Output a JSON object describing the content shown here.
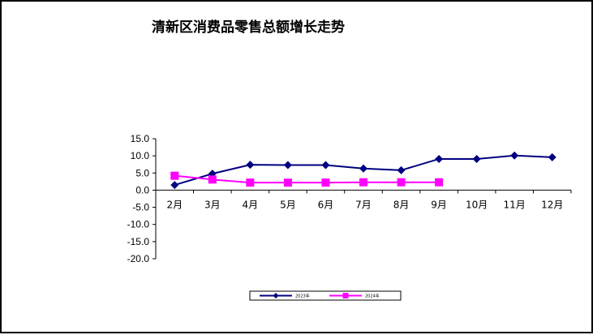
{
  "chart_data": {
    "type": "line",
    "title": "清新区消费品零售总额增长走势",
    "categories": [
      "2月",
      "3月",
      "4月",
      "5月",
      "6月",
      "7月",
      "8月",
      "9月",
      "10月",
      "11月",
      "12月"
    ],
    "y_ticks": [
      "15.0",
      "10.0",
      "5.0",
      "0.0",
      "-5.0",
      "-10.0",
      "-15.0",
      "-20.0"
    ],
    "ylim": [
      -20,
      15
    ],
    "series": [
      {
        "name": "2023年",
        "color": "#000080",
        "marker": "diamond",
        "values": [
          1.5,
          4.8,
          7.4,
          7.3,
          7.3,
          6.3,
          5.8,
          9.1,
          9.1,
          10.1,
          9.6
        ]
      },
      {
        "name": "2024年",
        "color": "#FF00FF",
        "marker": "square",
        "values": [
          4.2,
          3.1,
          2.2,
          2.2,
          2.2,
          2.3,
          2.3,
          2.3,
          null,
          null,
          null
        ]
      }
    ],
    "grid": false,
    "legend": "bottom"
  }
}
